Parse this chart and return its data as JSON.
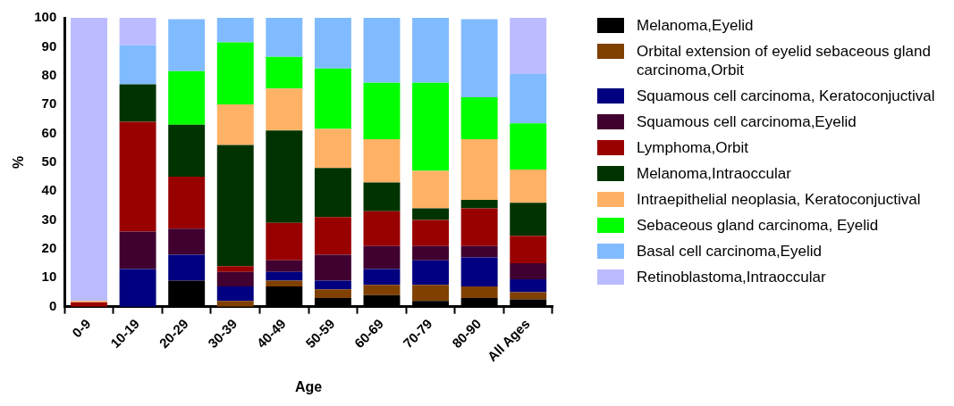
{
  "chart_data": {
    "type": "bar",
    "stacked": true,
    "xlabel": "Age",
    "ylabel": "%",
    "ylim": [
      0,
      100
    ],
    "yticks": [
      0,
      10,
      20,
      30,
      40,
      50,
      60,
      70,
      80,
      90,
      100
    ],
    "grid": false,
    "legend": "right",
    "categories": [
      "0-9",
      "10-19",
      "20-29",
      "30-39",
      "40-49",
      "50-59",
      "60-69",
      "70-79",
      "80-90",
      "All Ages"
    ],
    "series": [
      {
        "name": "Melanoma,Eyelid",
        "color": "#000000",
        "values": [
          0,
          0,
          9,
          0,
          7,
          3,
          4,
          2,
          3,
          2.5
        ]
      },
      {
        "name": "Orbital extension of eyelid sebaceous gland carcinoma,Orbit",
        "color": "#804000",
        "values": [
          0,
          0,
          0,
          2,
          2,
          3,
          3.5,
          5.5,
          4,
          2.5
        ]
      },
      {
        "name": "Squamous cell carcinoma, Keratoconjuctival",
        "color": "#000080",
        "values": [
          0,
          13,
          9,
          5,
          3,
          3,
          5.5,
          8.5,
          10,
          4.5
        ]
      },
      {
        "name": "Squamous cell carcinoma,Eyelid",
        "color": "#400030",
        "values": [
          0,
          13,
          9,
          5,
          4,
          9,
          8,
          5,
          4,
          5.5
        ]
      },
      {
        "name": "Lymphoma,Orbit",
        "color": "#990000",
        "values": [
          1.5,
          38,
          18,
          2,
          13,
          13,
          12,
          9,
          13,
          9.5
        ]
      },
      {
        "name": "Melanoma,Intraoccular",
        "color": "#003300",
        "values": [
          0,
          13,
          18,
          42,
          32,
          17,
          10,
          4,
          3,
          11.5
        ]
      },
      {
        "name": "Intraepithelial neoplasia, Keratoconjuctival",
        "color": "#ffb266",
        "values": [
          0.5,
          0,
          0,
          14,
          14.5,
          13.5,
          15,
          13,
          21,
          11.5
        ]
      },
      {
        "name": "Sebaceous gland carcinoma, Eyelid",
        "color": "#00ff00",
        "values": [
          0,
          0,
          18.5,
          21.5,
          11,
          21,
          19.5,
          30.5,
          14.5,
          16
        ]
      },
      {
        "name": "Basal cell carcinoma,Eyelid",
        "color": "#80bbff",
        "values": [
          0,
          13.5,
          18,
          8.5,
          13.5,
          17.5,
          22.5,
          22.5,
          27,
          17
        ]
      },
      {
        "name": "Retinoblastoma,Intraoccular",
        "color": "#bbbbff",
        "values": [
          98,
          9.5,
          0,
          0,
          0,
          0,
          0,
          0,
          0,
          19.5
        ]
      }
    ]
  }
}
